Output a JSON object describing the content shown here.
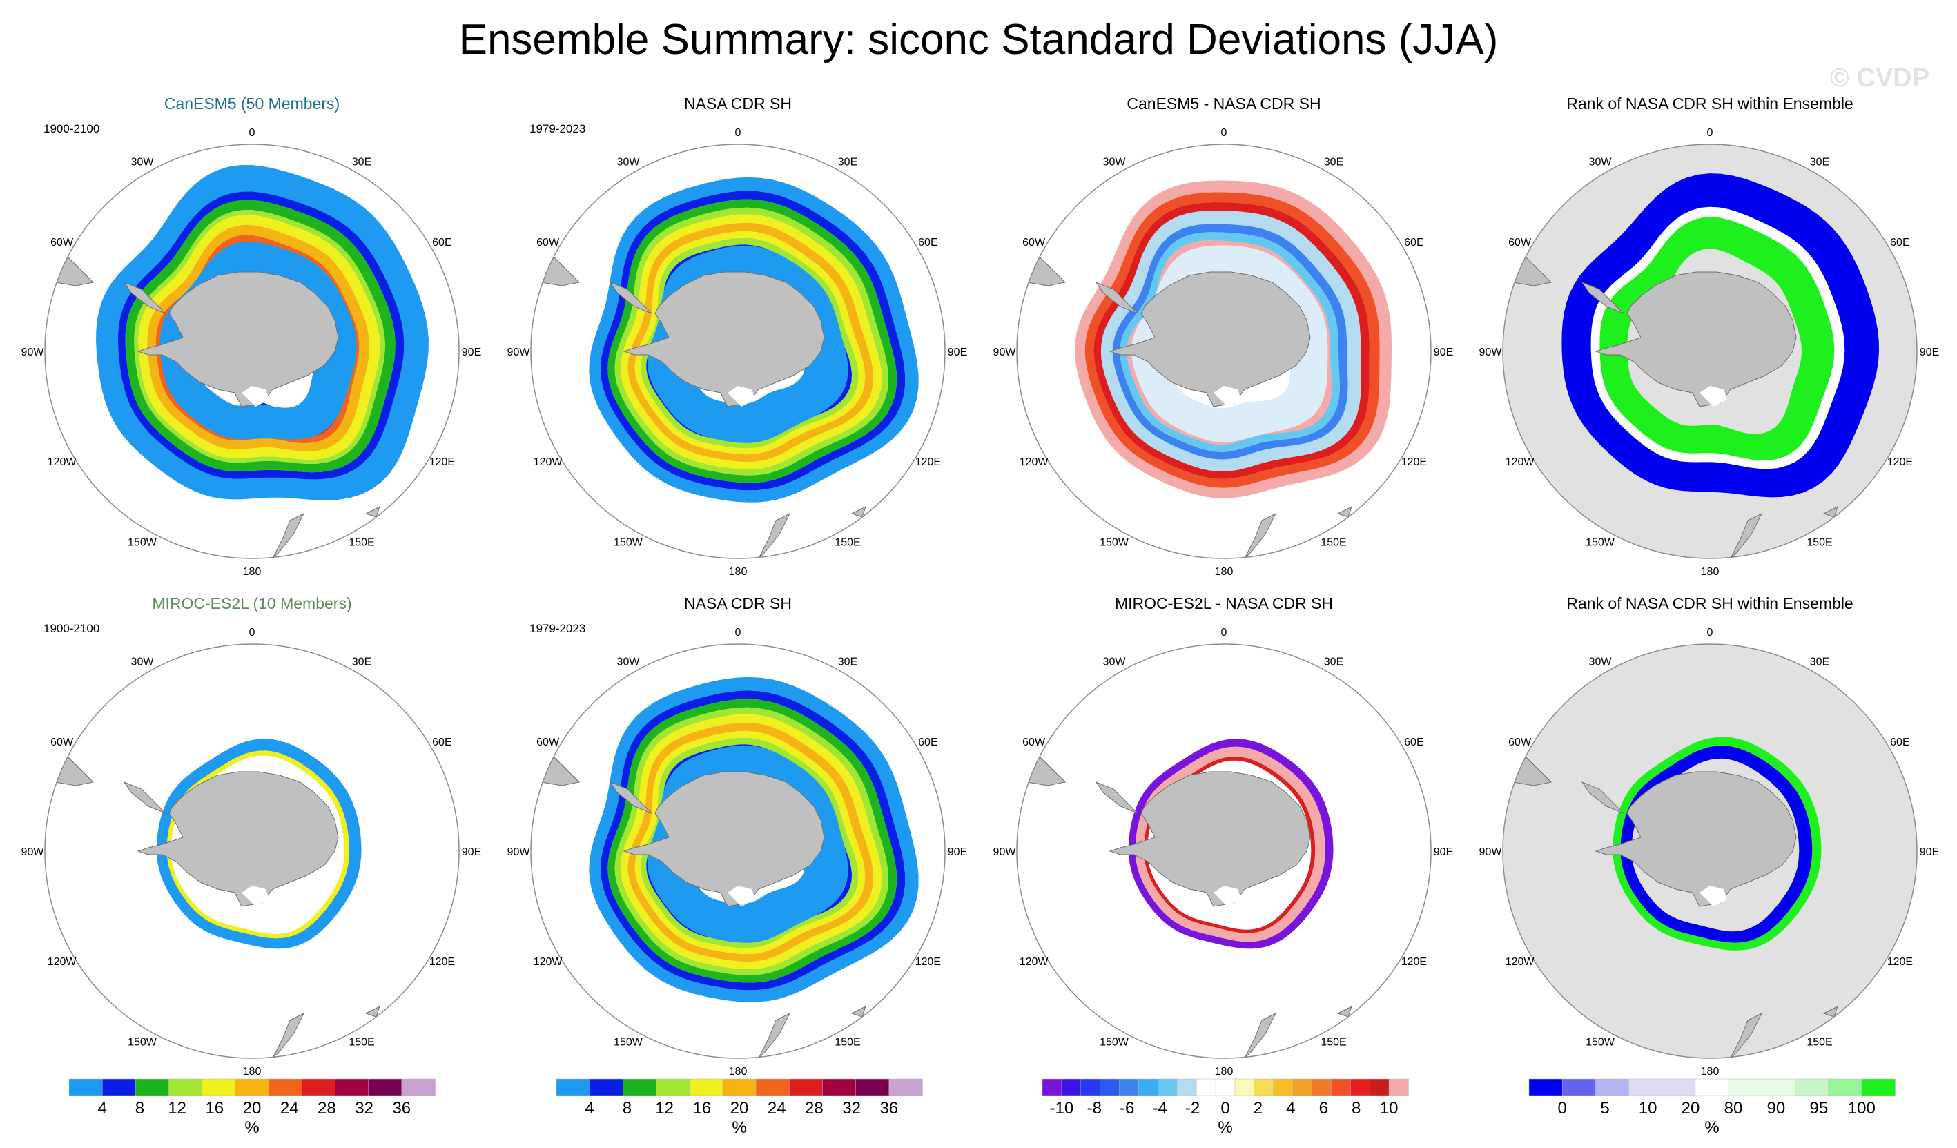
{
  "title": "Ensemble Summary: siconc Standard Deviations (JJA)",
  "watermark": "© CVDP",
  "colors": {
    "land": "#c0c0c0",
    "land_edge": "#6e6e6e",
    "grid_circle": "#8c8c8c",
    "rank_background": "#e1e1e1",
    "model_title_1": "#1e6e8c",
    "model_title_2": "#5a8c5a"
  },
  "longitude_labels": [
    "0",
    "30E",
    "60E",
    "90E",
    "120E",
    "150E",
    "180",
    "150W",
    "120W",
    "90W",
    "60W",
    "30W"
  ],
  "rows": [
    {
      "panels": [
        {
          "title": "CanESM5 (50 Members)",
          "period": "1900-2100",
          "kind": "std_model_wide",
          "title_color": "#1e6e8c"
        },
        {
          "title": "NASA CDR SH",
          "period": "1979-2023",
          "kind": "std_obs"
        },
        {
          "title": "CanESM5 - NASA CDR SH",
          "period": "",
          "kind": "diff_wide"
        },
        {
          "title": "Rank of NASA CDR SH within Ensemble",
          "period": "",
          "kind": "rank_wide"
        }
      ]
    },
    {
      "panels": [
        {
          "title": "MIROC-ES2L (10 Members)",
          "period": "1900-2100",
          "kind": "std_model_narrow",
          "title_color": "#5a8c5a"
        },
        {
          "title": "NASA CDR SH",
          "period": "1979-2023",
          "kind": "std_obs"
        },
        {
          "title": "MIROC-ES2L - NASA CDR SH",
          "period": "",
          "kind": "diff_narrow"
        },
        {
          "title": "Rank of NASA CDR SH within Ensemble",
          "period": "",
          "kind": "rank_narrow"
        }
      ]
    }
  ],
  "colorbars": [
    {
      "name": "std-colorbar-1",
      "unit": "%",
      "colors": [
        "#1e9bf0",
        "#0a1ee6",
        "#1eb41e",
        "#a0e632",
        "#f0f01e",
        "#f5b414",
        "#f0641e",
        "#dc1e1e",
        "#a0003c",
        "#780050",
        "#c8a0d2"
      ],
      "labels": [
        "4",
        "8",
        "12",
        "16",
        "20",
        "24",
        "28",
        "32",
        "36"
      ]
    },
    {
      "name": "std-colorbar-2",
      "unit": "%",
      "colors": [
        "#1e9bf0",
        "#0a1ee6",
        "#1eb41e",
        "#a0e632",
        "#f0f01e",
        "#f5b414",
        "#f0641e",
        "#dc1e1e",
        "#a0003c",
        "#780050",
        "#c8a0d2"
      ],
      "labels": [
        "4",
        "8",
        "12",
        "16",
        "20",
        "24",
        "28",
        "32",
        "36"
      ]
    },
    {
      "name": "diff-colorbar",
      "unit": "%",
      "colors": [
        "#7814dc",
        "#3c14e6",
        "#2837f0",
        "#2a5af0",
        "#3c82f0",
        "#3caaf0",
        "#64c8f0",
        "#b4dcf0",
        "#ffffff",
        "#ffffff",
        "#fafab4",
        "#f5dc50",
        "#f5be28",
        "#f0a028",
        "#f07828",
        "#f05028",
        "#e61e1e",
        "#c81e1e",
        "#f5aaaa"
      ],
      "labels": [
        "-10",
        "-8",
        "-6",
        "-4",
        "-2",
        "0",
        "2",
        "4",
        "6",
        "8",
        "10"
      ]
    },
    {
      "name": "rank-colorbar",
      "unit": "%",
      "colors": [
        "#0000f0",
        "#6464f0",
        "#b4b4f0",
        "#dcdcf5",
        "#dcdcf5",
        "#ffffff",
        "#e6fae6",
        "#e6fae6",
        "#c8f5c8",
        "#96f596",
        "#1ef01e"
      ],
      "labels": [
        "0",
        "5",
        "10",
        "20",
        "80",
        "90",
        "95",
        "100"
      ]
    }
  ]
}
